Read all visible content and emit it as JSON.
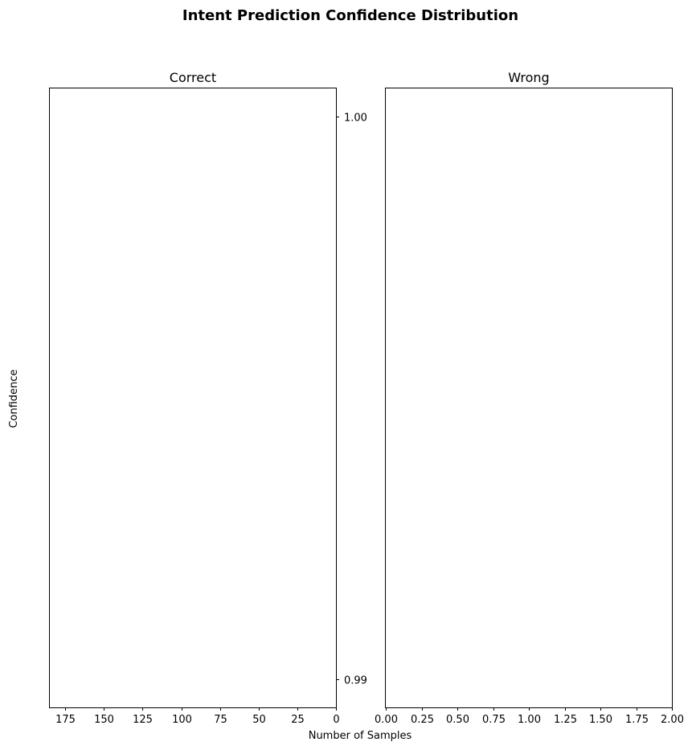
{
  "chart_data": {
    "type": "bar",
    "title": "Intent Prediction Confidence Distribution",
    "xlabel": "Number of Samples",
    "ylabel": "Confidence",
    "ylim": [
      0.9895,
      1.0005
    ],
    "y_ticks": [
      {
        "value": 1.0,
        "label": "1.00"
      },
      {
        "value": 0.99,
        "label": "0.99"
      }
    ],
    "panels": [
      {
        "title": "Correct",
        "xlim": [
          185,
          0
        ],
        "x_ticks": [
          {
            "value": 175,
            "label": "175"
          },
          {
            "value": 150,
            "label": "150"
          },
          {
            "value": 125,
            "label": "125"
          },
          {
            "value": 100,
            "label": "100"
          },
          {
            "value": 75,
            "label": "75"
          },
          {
            "value": 50,
            "label": "50"
          },
          {
            "value": 25,
            "label": "25"
          },
          {
            "value": 0,
            "label": "0"
          }
        ],
        "bars": []
      },
      {
        "title": "Wrong",
        "xlim": [
          0,
          2
        ],
        "x_ticks": [
          {
            "value": 0.0,
            "label": "0.00"
          },
          {
            "value": 0.25,
            "label": "0.25"
          },
          {
            "value": 0.5,
            "label": "0.50"
          },
          {
            "value": 0.75,
            "label": "0.75"
          },
          {
            "value": 1.0,
            "label": "1.00"
          },
          {
            "value": 1.25,
            "label": "1.25"
          },
          {
            "value": 1.5,
            "label": "1.50"
          },
          {
            "value": 1.75,
            "label": "1.75"
          },
          {
            "value": 2.0,
            "label": "2.00"
          }
        ],
        "bars": []
      }
    ],
    "grid": false
  }
}
